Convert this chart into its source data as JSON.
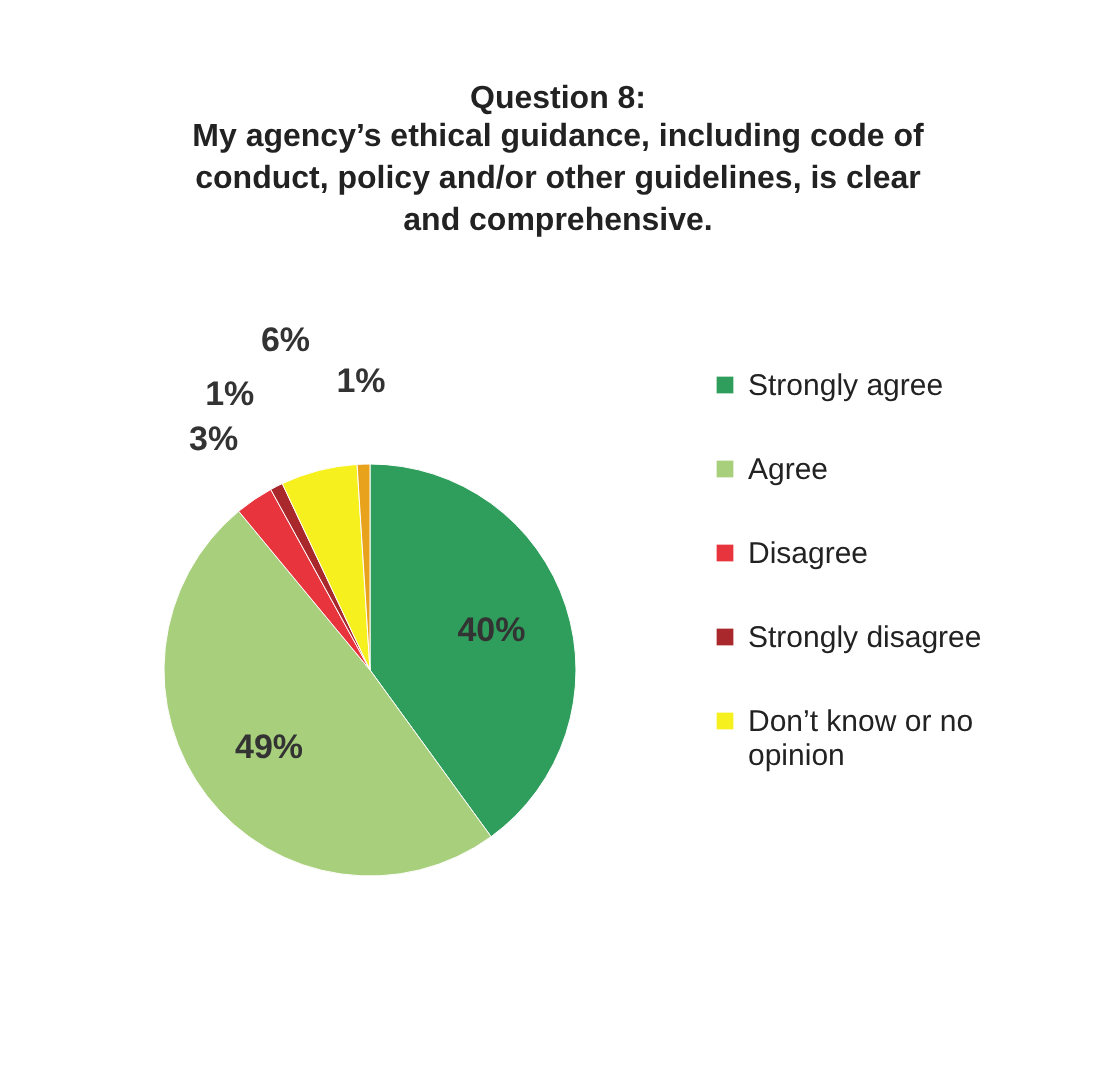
{
  "chart_data": {
    "type": "pie",
    "title": "Question 8:",
    "subtitle": "My agency’s ethical guidance, including code of conduct, policy and/or other guidelines, is clear and comprehensive.",
    "categories": [
      "Strongly agree",
      "Agree",
      "Disagree",
      "Strongly disagree",
      "Don’t know or no opinion",
      null
    ],
    "values": [
      40,
      49,
      3,
      1,
      6,
      1
    ],
    "colors": [
      "#2f9e5c",
      "#a8d07c",
      "#e8343c",
      "#a8282c",
      "#f6f01e",
      "#e9a21c"
    ],
    "value_labels": [
      "40%",
      "49%",
      "3%",
      "1%",
      "6%",
      "1%"
    ],
    "legend": "right"
  }
}
